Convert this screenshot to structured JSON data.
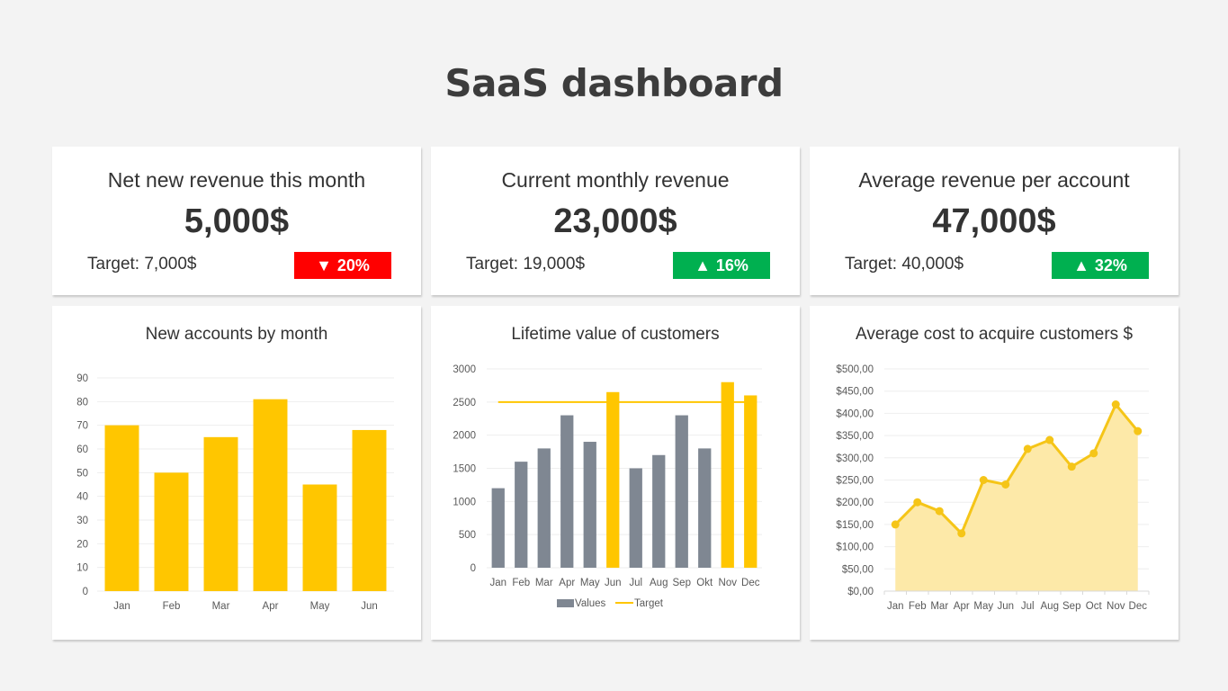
{
  "page_title": "SaaS dashboard",
  "colors": {
    "yellow": "#FFC600",
    "gray": "#7F8792",
    "red": "#FF0000",
    "green": "#00B050",
    "area_fill": "#FDE9A8"
  },
  "kpis": [
    {
      "label": "Net new revenue this month",
      "value": "5,000$",
      "target": "Target: 7,000$",
      "change": "20%",
      "direction": "down",
      "direction_icon": "▼"
    },
    {
      "label": "Current monthly revenue",
      "value": "23,000$",
      "target": "Target: 19,000$",
      "change": "16%",
      "direction": "up",
      "direction_icon": "▲"
    },
    {
      "label": "Average revenue per account",
      "value": "47,000$",
      "target": "Target: 40,000$",
      "change": "32%",
      "direction": "up",
      "direction_icon": "▲"
    }
  ],
  "chart_data": [
    {
      "type": "bar",
      "title": "New accounts by month",
      "categories": [
        "Jan",
        "Feb",
        "Mar",
        "Apr",
        "May",
        "Jun"
      ],
      "values": [
        70,
        50,
        65,
        81,
        45,
        68
      ],
      "ylim": [
        0,
        90
      ],
      "yticks": [
        0,
        10,
        20,
        30,
        40,
        50,
        60,
        70,
        80,
        90
      ],
      "grid": true,
      "xlabel": "",
      "ylabel": ""
    },
    {
      "type": "bar",
      "title": "Lifetime value of customers",
      "categories": [
        "Jan",
        "Feb",
        "Mar",
        "Apr",
        "May",
        "Jun",
        "Jul",
        "Aug",
        "Sep",
        "Okt",
        "Nov",
        "Dec"
      ],
      "series": [
        {
          "name": "Values",
          "values": [
            1200,
            1600,
            1800,
            2300,
            1900,
            2650,
            1500,
            1700,
            2300,
            1800,
            2800,
            2600
          ]
        },
        {
          "name": "Target",
          "type": "line",
          "values": [
            2500,
            2500,
            2500,
            2500,
            2500,
            2500,
            2500,
            2500,
            2500,
            2500,
            2500,
            2500
          ]
        }
      ],
      "highlight_above_target": true,
      "ylim": [
        0,
        3000
      ],
      "yticks": [
        0,
        500,
        1000,
        1500,
        2000,
        2500,
        3000
      ],
      "legend": [
        "Values",
        "Target"
      ],
      "legend_position": "bottom",
      "grid": true
    },
    {
      "type": "area",
      "title": "Average cost to acquire customers $",
      "categories": [
        "Jan",
        "Feb",
        "Mar",
        "Apr",
        "May",
        "Jun",
        "Jul",
        "Aug",
        "Sep",
        "Oct",
        "Nov",
        "Dec"
      ],
      "values": [
        150,
        200,
        180,
        130,
        250,
        240,
        320,
        340,
        280,
        310,
        420,
        360
      ],
      "ylim": [
        0,
        500
      ],
      "yticks": [
        "$0,00",
        "$50,00",
        "$100,00",
        "$150,00",
        "$200,00",
        "$250,00",
        "$300,00",
        "$350,00",
        "$400,00",
        "$450,00",
        "$500,00"
      ],
      "grid": true
    }
  ]
}
